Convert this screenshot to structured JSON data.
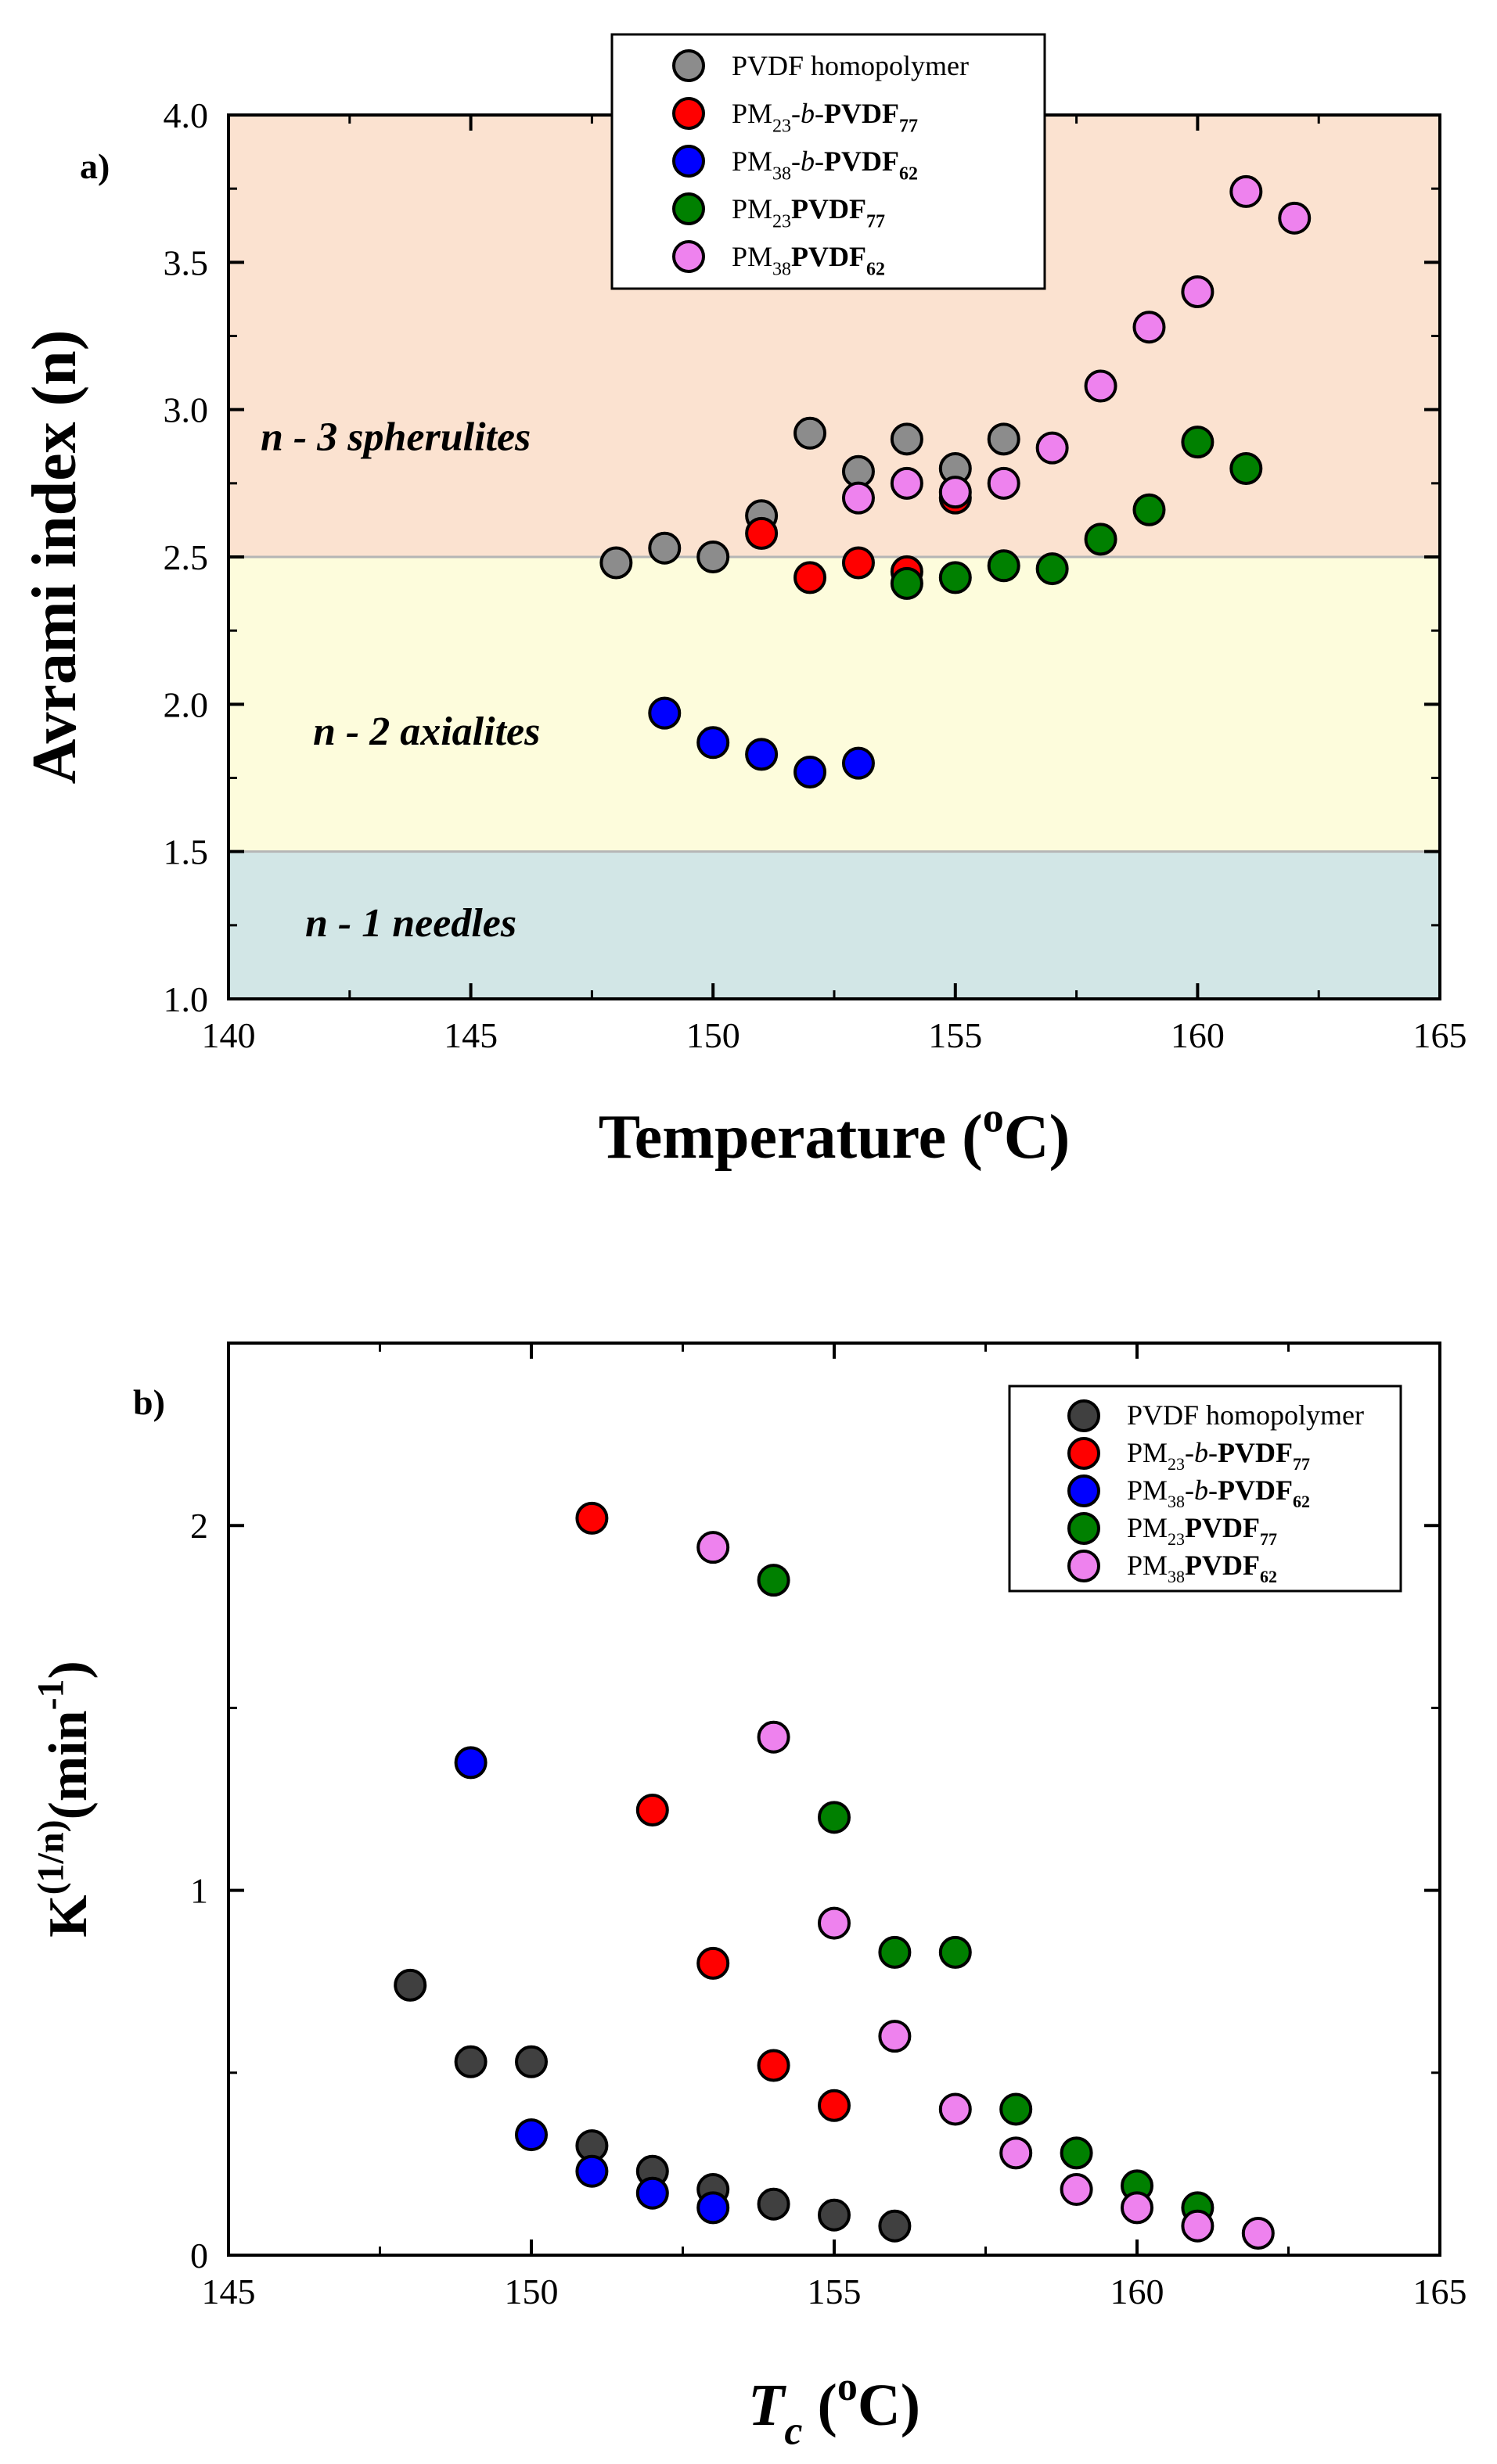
{
  "chart_data": [
    {
      "type": "scatter",
      "panel_label": "a)",
      "xlabel": "Temperature (oC)",
      "xlabel_parts": {
        "base": "Temperature (",
        "sup": "o",
        "tail": "C)"
      },
      "ylabel": "Avrami index (n)",
      "xlim": [
        140,
        165
      ],
      "ylim": [
        1.0,
        4.0
      ],
      "xticks": [
        "140",
        "145",
        "150",
        "155",
        "160",
        "165"
      ],
      "yticks": [
        "1.0",
        "1.5",
        "2.0",
        "2.5",
        "3.0",
        "3.5",
        "4.0"
      ],
      "legend_position": "top-center",
      "regions": [
        {
          "label": "n - 3 spherulites",
          "y_from": 2.5,
          "y_to": 4.0,
          "color": "#fbe2d0"
        },
        {
          "label": "n - 2 axialites",
          "y_from": 1.5,
          "y_to": 2.5,
          "color": "#fdfcdc"
        },
        {
          "label": "n - 1 needles",
          "y_from": 1.0,
          "y_to": 1.5,
          "color": "#d2e6e6"
        }
      ],
      "series": [
        {
          "name": "PVDF homopolymer",
          "color": "#8c8c8c",
          "x": [
            148,
            149,
            150,
            151,
            152,
            153,
            154,
            155,
            156
          ],
          "y": [
            2.48,
            2.53,
            2.5,
            2.64,
            2.92,
            2.79,
            2.9,
            2.8,
            2.9
          ]
        },
        {
          "name": "PM23-b-PVDF77",
          "color": "#ff0000",
          "x": [
            151,
            152,
            153,
            154,
            155
          ],
          "y": [
            2.58,
            2.43,
            2.48,
            2.45,
            2.7
          ]
        },
        {
          "name": "PM38-b-PVDF62",
          "color": "#0000ff",
          "x": [
            149,
            150,
            151,
            152,
            153
          ],
          "y": [
            1.97,
            1.87,
            1.83,
            1.77,
            1.8
          ]
        },
        {
          "name": "PM23PVDF77",
          "color": "#008000",
          "x": [
            154,
            155,
            156,
            157,
            158,
            159,
            160,
            161
          ],
          "y": [
            2.41,
            2.43,
            2.47,
            2.46,
            2.56,
            2.66,
            2.89,
            2.8
          ]
        },
        {
          "name": "PM38PVDF62",
          "color": "#ee82ee",
          "x": [
            153,
            154,
            155,
            156,
            157,
            158,
            159,
            160,
            161,
            162
          ],
          "y": [
            2.7,
            2.75,
            2.72,
            2.75,
            2.87,
            3.08,
            3.28,
            3.4,
            3.74,
            3.65
          ]
        }
      ],
      "legend": [
        {
          "pre": "PVDF homopolymer",
          "parts": []
        },
        {
          "pre": "PM",
          "parts": [
            {
              "t": "23",
              "sub": true
            },
            {
              "t": "-"
            },
            {
              "t": "b",
              "italic": true
            },
            {
              "t": "-"
            },
            {
              "t": "PVDF",
              "bold": true
            },
            {
              "t": "77",
              "sub": true,
              "bold": true
            }
          ]
        },
        {
          "pre": "PM",
          "parts": [
            {
              "t": "38",
              "sub": true
            },
            {
              "t": "-"
            },
            {
              "t": "b",
              "italic": true
            },
            {
              "t": "-"
            },
            {
              "t": "PVDF",
              "bold": true
            },
            {
              "t": "62",
              "sub": true,
              "bold": true
            }
          ]
        },
        {
          "pre": "PM",
          "parts": [
            {
              "t": "23",
              "sub": true
            },
            {
              "t": "PVDF",
              "bold": true
            },
            {
              "t": "77",
              "sub": true,
              "bold": true
            }
          ]
        },
        {
          "pre": "PM",
          "parts": [
            {
              "t": "38",
              "sub": true
            },
            {
              "t": "PVDF",
              "bold": true
            },
            {
              "t": "62",
              "sub": true,
              "bold": true
            }
          ]
        }
      ]
    },
    {
      "type": "scatter",
      "panel_label": "b)",
      "xlabel": "Tc (oC)",
      "xlabel_parts": {
        "base": "T",
        "sub": "c",
        "tail_pre": " (",
        "sup": "o",
        "tail": "C)"
      },
      "ylabel": "K(1/n) (min-1)",
      "ylabel_parts": {
        "base": "K",
        "sup1": "(1/n)",
        "mid": "(min",
        "sup2": "-1",
        "tail": ")"
      },
      "xlim": [
        145,
        165
      ],
      "ylim": [
        0,
        2.5
      ],
      "xticks": [
        "145",
        "150",
        "155",
        "160",
        "165"
      ],
      "yticks": [
        "0",
        "1",
        "2"
      ],
      "legend_position": "top-right",
      "series": [
        {
          "name": "PVDF homopolymer",
          "color": "#404040",
          "x": [
            148,
            149,
            150,
            151,
            152,
            153,
            154,
            155,
            156
          ],
          "y": [
            0.74,
            0.53,
            0.53,
            0.3,
            0.23,
            0.18,
            0.14,
            0.11,
            0.08
          ]
        },
        {
          "name": "PM23-b-PVDF77",
          "color": "#ff0000",
          "x": [
            151,
            152,
            153,
            154,
            155
          ],
          "y": [
            2.02,
            1.22,
            0.8,
            0.52,
            0.41
          ]
        },
        {
          "name": "PM38-b-PVDF62",
          "color": "#0000ff",
          "x": [
            149,
            150,
            151,
            152,
            153
          ],
          "y": [
            1.35,
            0.33,
            0.23,
            0.17,
            0.13
          ]
        },
        {
          "name": "PM23PVDF77",
          "color": "#008000",
          "x": [
            154,
            155,
            156,
            157,
            158,
            159,
            160,
            161
          ],
          "y": [
            1.85,
            1.2,
            0.83,
            0.83,
            0.4,
            0.28,
            0.19,
            0.13
          ]
        },
        {
          "name": "PM38PVDF62",
          "color": "#ee82ee",
          "x": [
            153,
            154,
            155,
            156,
            157,
            158,
            159,
            160,
            161,
            162
          ],
          "y": [
            1.94,
            1.42,
            0.91,
            0.6,
            0.4,
            0.28,
            0.18,
            0.13,
            0.08,
            0.06
          ]
        }
      ],
      "legend": [
        {
          "pre": "PVDF homopolymer",
          "parts": []
        },
        {
          "pre": "PM",
          "parts": [
            {
              "t": "23",
              "sub": true
            },
            {
              "t": "-"
            },
            {
              "t": "b",
              "italic": true
            },
            {
              "t": "-"
            },
            {
              "t": "PVDF",
              "bold": true
            },
            {
              "t": "77",
              "sub": true,
              "bold": true
            }
          ]
        },
        {
          "pre": "PM",
          "parts": [
            {
              "t": "38",
              "sub": true
            },
            {
              "t": "-"
            },
            {
              "t": "b",
              "italic": true
            },
            {
              "t": "-"
            },
            {
              "t": "PVDF",
              "bold": true
            },
            {
              "t": "62",
              "sub": true,
              "bold": true
            }
          ]
        },
        {
          "pre": "PM",
          "parts": [
            {
              "t": "23",
              "sub": true
            },
            {
              "t": "PVDF",
              "bold": true
            },
            {
              "t": "77",
              "sub": true,
              "bold": true
            }
          ]
        },
        {
          "pre": "PM",
          "parts": [
            {
              "t": "38",
              "sub": true
            },
            {
              "t": "PVDF",
              "bold": true
            },
            {
              "t": "62",
              "sub": true,
              "bold": true
            }
          ]
        }
      ]
    }
  ]
}
